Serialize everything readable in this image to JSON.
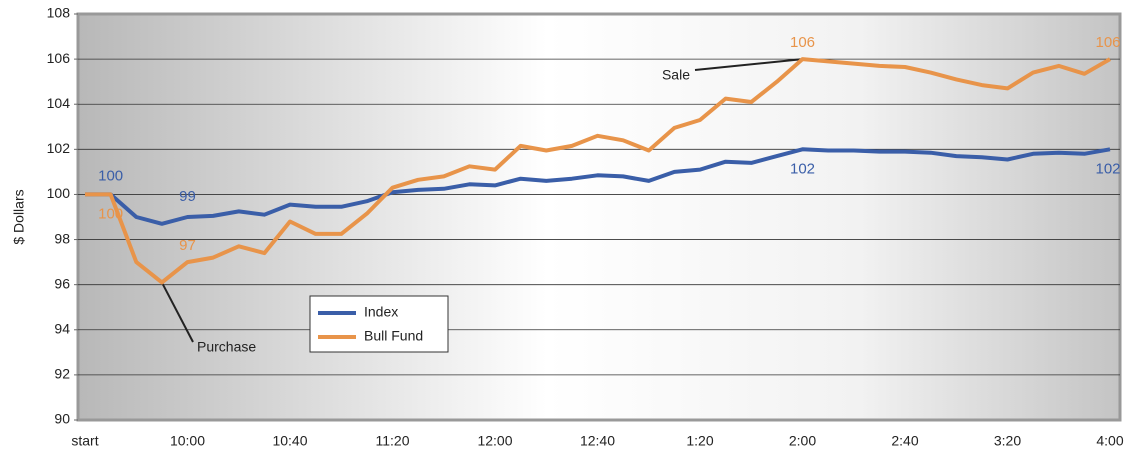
{
  "chart_data": {
    "type": "line",
    "y_label": "$ Dollars",
    "categories": [
      "start",
      null,
      null,
      null,
      "10:00",
      null,
      null,
      null,
      "10:40",
      null,
      null,
      null,
      "11:20",
      null,
      null,
      null,
      "12:00",
      null,
      null,
      null,
      "12:40",
      null,
      null,
      null,
      "1:20",
      null,
      null,
      null,
      "2:00",
      null,
      null,
      null,
      "2:40",
      null,
      null,
      null,
      "3:20",
      null,
      null,
      null,
      "4:00"
    ],
    "series": [
      {
        "name": "Index",
        "color": "#3a5ea8",
        "values": [
          100,
          100,
          99,
          98.7,
          99,
          99.05,
          99.25,
          99.1,
          99.55,
          99.45,
          99.45,
          99.7,
          100.1,
          100.2,
          100.25,
          100.45,
          100.4,
          100.7,
          100.6,
          100.7,
          100.85,
          100.8,
          100.6,
          101,
          101.1,
          101.45,
          101.4,
          101.7,
          102,
          101.95,
          101.95,
          101.9,
          101.9,
          101.85,
          101.7,
          101.65,
          101.55,
          101.8,
          101.85,
          101.8,
          102
        ],
        "value_labels": [
          null,
          "100",
          null,
          null,
          "99",
          null,
          null,
          null,
          null,
          null,
          null,
          null,
          null,
          null,
          null,
          null,
          null,
          null,
          null,
          null,
          null,
          null,
          null,
          null,
          null,
          null,
          null,
          null,
          "102",
          null,
          null,
          null,
          null,
          null,
          null,
          null,
          null,
          null,
          null,
          null,
          "102"
        ]
      },
      {
        "name": "Bull Fund",
        "color": "#e8944a",
        "values": [
          100,
          100,
          97,
          96.1,
          97,
          97.2,
          97.7,
          97.4,
          98.8,
          98.25,
          98.25,
          99.15,
          100.3,
          100.65,
          100.8,
          101.25,
          101.1,
          102.15,
          101.95,
          102.15,
          102.6,
          102.4,
          101.95,
          102.95,
          103.3,
          104.25,
          104.1,
          105,
          106,
          105.9,
          105.8,
          105.7,
          105.65,
          105.4,
          105.1,
          104.85,
          104.7,
          105.4,
          105.7,
          105.35,
          106
        ],
        "value_labels": [
          null,
          "100",
          null,
          null,
          "97",
          null,
          null,
          null,
          null,
          null,
          null,
          null,
          null,
          null,
          null,
          null,
          null,
          null,
          null,
          null,
          null,
          null,
          null,
          null,
          null,
          null,
          null,
          null,
          "106",
          null,
          null,
          null,
          null,
          null,
          null,
          null,
          null,
          null,
          null,
          null,
          "106"
        ]
      }
    ],
    "annotations": [
      "Purchase",
      "Sale"
    ],
    "ylim": [
      90,
      108
    ],
    "yticks": [
      90,
      92,
      94,
      96,
      98,
      100,
      102,
      104,
      106,
      108
    ],
    "grid": true
  }
}
